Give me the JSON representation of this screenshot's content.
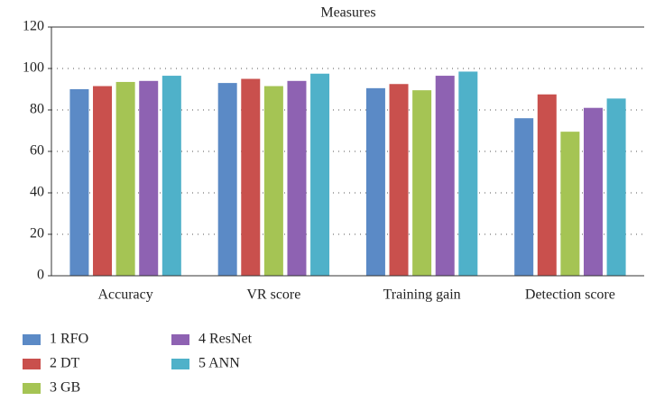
{
  "chart_data": {
    "type": "bar",
    "title": "Measures",
    "categories": [
      "Accuracy",
      "VR score",
      "Training gain",
      "Detection score"
    ],
    "series": [
      {
        "name": "1 RFO",
        "color": "#5b8ac6",
        "values": [
          90,
          93,
          90.5,
          76
        ]
      },
      {
        "name": "2 DT",
        "color": "#c9504d",
        "values": [
          91.5,
          95,
          92.5,
          87.5
        ]
      },
      {
        "name": "3 GB",
        "color": "#a5c454",
        "values": [
          93.5,
          91.5,
          89.5,
          69.5
        ]
      },
      {
        "name": "4 ResNet",
        "color": "#8e62b2",
        "values": [
          94,
          94,
          96.5,
          81
        ]
      },
      {
        "name": "5 ANN",
        "color": "#4fb1c9",
        "values": [
          96.5,
          97.5,
          98.5,
          85.5
        ]
      }
    ],
    "ylim": [
      0,
      120
    ],
    "yticks": [
      0,
      20,
      40,
      60,
      80,
      100,
      120
    ],
    "grid": true,
    "legend": "bottom-left"
  }
}
